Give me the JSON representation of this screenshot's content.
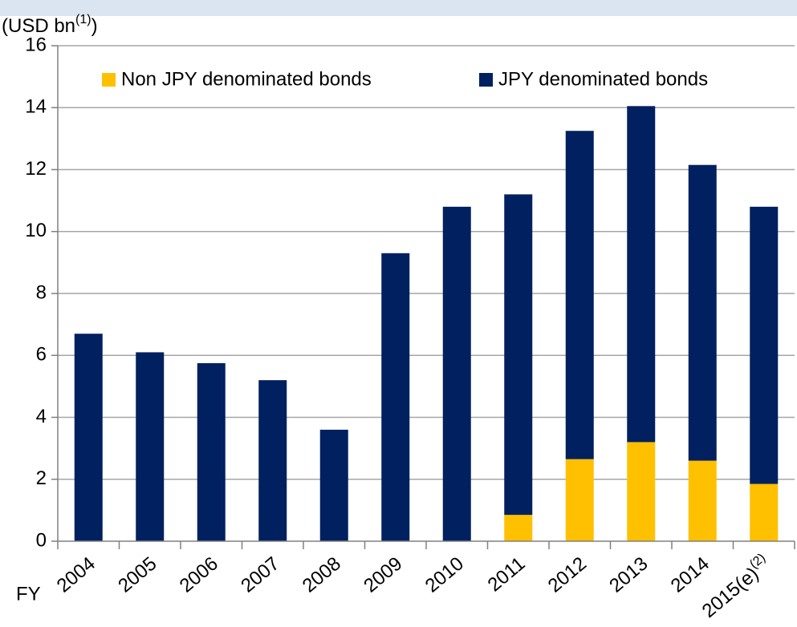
{
  "chart_data": {
    "type": "stacked_bar",
    "y_label": {
      "text": "(USD bn",
      "superscript": "(1)",
      "suffix": ")"
    },
    "x_label": "FY",
    "categories": [
      "2004",
      "2005",
      "2006",
      "2007",
      "2008",
      "2009",
      "2010",
      "2011",
      "2012",
      "2013",
      "2014",
      "2015(e)"
    ],
    "category_superscripts": [
      null,
      null,
      null,
      null,
      null,
      null,
      null,
      null,
      null,
      null,
      null,
      "(2)"
    ],
    "series": [
      {
        "name": "Non JPY denominated bonds",
        "color": "#ffc000",
        "values": [
          0,
          0,
          0,
          0,
          0,
          0,
          0,
          0.85,
          2.65,
          3.2,
          2.6,
          1.85
        ]
      },
      {
        "name": "JPY denominated bonds",
        "color": "#002060",
        "values": [
          6.7,
          6.1,
          5.75,
          5.2,
          3.6,
          9.3,
          10.8,
          10.35,
          10.6,
          10.85,
          9.55,
          8.95
        ]
      }
    ],
    "ylim": [
      0,
      16
    ],
    "yticks": [
      0,
      2,
      4,
      6,
      8,
      10,
      12,
      14,
      16
    ],
    "grid": true,
    "legend": "top"
  }
}
